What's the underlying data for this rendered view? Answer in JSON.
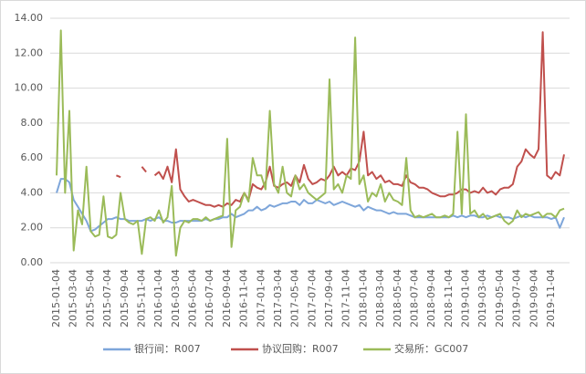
{
  "chart_data": {
    "type": "line",
    "categories": [
      "2015-01-04",
      null,
      null,
      null,
      "2015-03-04",
      null,
      null,
      null,
      "2015-05-04",
      null,
      null,
      null,
      "2015-07-04",
      null,
      null,
      null,
      "2015-09-04",
      null,
      null,
      null,
      "2015-11-04",
      null,
      null,
      null,
      "2016-01-04",
      null,
      null,
      null,
      "2016-03-04",
      null,
      null,
      null,
      "2016-05-04",
      null,
      null,
      null,
      "2016-07-04",
      null,
      null,
      null,
      "2016-09-04",
      null,
      null,
      null,
      "2016-11-04",
      null,
      null,
      null,
      "2017-01-04",
      null,
      null,
      null,
      "2017-03-04",
      null,
      null,
      null,
      "2017-05-04",
      null,
      null,
      null,
      "2017-07-04",
      null,
      null,
      null,
      "2017-09-04",
      null,
      null,
      null,
      "2017-11-04",
      null,
      null,
      null,
      "2018-01-04",
      null,
      null,
      null,
      "2018-03-04",
      null,
      null,
      null,
      "2018-05-04",
      null,
      null,
      null,
      "2018-07-04",
      null,
      null,
      null,
      "2018-09-04",
      null,
      null,
      null,
      "2018-11-04",
      null,
      null,
      null,
      "2019-01-04",
      null,
      null,
      null,
      "2019-03-04",
      null,
      null,
      null,
      "2019-05-04",
      null,
      null,
      null,
      "2019-07-04",
      null,
      null,
      null,
      "2019-09-04",
      null,
      null,
      null,
      "2019-11-04",
      null,
      null,
      null
    ],
    "series": [
      {
        "name": "银行间：R007",
        "color": "#7ea6da",
        "values": [
          4.0,
          4.8,
          4.8,
          4.6,
          3.6,
          3.2,
          2.8,
          2.4,
          1.8,
          1.9,
          2.1,
          2.3,
          2.5,
          2.5,
          2.6,
          2.5,
          2.5,
          2.4,
          2.4,
          2.4,
          2.4,
          2.5,
          2.4,
          2.5,
          2.6,
          2.4,
          2.4,
          2.3,
          2.3,
          2.4,
          2.4,
          2.4,
          2.4,
          2.4,
          2.4,
          2.5,
          2.4,
          2.5,
          2.5,
          2.6,
          2.6,
          2.8,
          2.6,
          2.7,
          2.8,
          3.0,
          3.0,
          3.2,
          3.0,
          3.1,
          3.3,
          3.2,
          3.3,
          3.4,
          3.4,
          3.5,
          3.5,
          3.3,
          3.6,
          3.4,
          3.4,
          3.6,
          3.5,
          3.4,
          3.5,
          3.3,
          3.4,
          3.5,
          3.4,
          3.3,
          3.2,
          3.3,
          3.0,
          3.2,
          3.1,
          3.0,
          3.0,
          2.9,
          2.8,
          2.9,
          2.8,
          2.8,
          2.8,
          2.7,
          2.6,
          2.6,
          2.6,
          2.6,
          2.6,
          2.6,
          2.6,
          2.6,
          2.6,
          2.7,
          2.6,
          2.7,
          2.6,
          2.7,
          2.7,
          2.6,
          2.6,
          2.7,
          2.6,
          2.7,
          2.6,
          2.6,
          2.6,
          2.5,
          2.6,
          2.7,
          2.6,
          2.7,
          2.6,
          2.6,
          2.6,
          2.6,
          2.5,
          2.6,
          2.0,
          2.6
        ]
      },
      {
        "name": "协议回购：R007",
        "color": "#c0504d",
        "values": [
          null,
          null,
          null,
          null,
          null,
          null,
          null,
          null,
          null,
          null,
          null,
          null,
          null,
          null,
          5.0,
          4.9,
          null,
          null,
          null,
          null,
          5.5,
          5.2,
          null,
          5.0,
          5.2,
          4.8,
          5.5,
          4.6,
          6.5,
          4.2,
          3.8,
          3.5,
          3.6,
          3.5,
          3.4,
          3.3,
          3.3,
          3.2,
          3.3,
          3.2,
          3.4,
          3.3,
          3.6,
          3.5,
          4.0,
          3.6,
          4.5,
          4.3,
          4.2,
          4.6,
          5.5,
          4.4,
          4.3,
          4.5,
          4.6,
          4.4,
          5.0,
          4.6,
          5.6,
          4.8,
          4.5,
          4.6,
          4.8,
          4.7,
          5.0,
          5.5,
          5.0,
          5.2,
          5.0,
          5.4,
          5.3,
          5.8,
          7.5,
          5.0,
          5.2,
          4.8,
          5.0,
          4.6,
          4.7,
          4.5,
          4.5,
          4.4,
          5.0,
          4.6,
          4.5,
          4.3,
          4.3,
          4.2,
          4.0,
          3.9,
          3.8,
          3.8,
          3.9,
          3.9,
          4.0,
          4.2,
          4.2,
          4.0,
          4.1,
          4.0,
          4.3,
          4.0,
          4.1,
          3.9,
          4.2,
          4.3,
          4.3,
          4.5,
          5.5,
          5.8,
          6.5,
          6.2,
          6.0,
          6.5,
          13.2,
          5.0,
          4.8,
          5.2,
          5.0,
          6.2
        ]
      },
      {
        "name": "交易所：GC007",
        "color": "#9bbb59",
        "values": [
          5.0,
          13.3,
          4.0,
          8.7,
          0.7,
          3.0,
          2.2,
          5.5,
          1.8,
          1.5,
          1.6,
          3.8,
          1.5,
          1.4,
          1.6,
          4.0,
          2.5,
          2.3,
          2.2,
          2.4,
          0.5,
          2.5,
          2.6,
          2.4,
          3.0,
          2.3,
          2.6,
          4.4,
          0.4,
          2.0,
          2.4,
          2.3,
          2.5,
          2.5,
          2.4,
          2.6,
          2.4,
          2.5,
          2.6,
          2.7,
          7.1,
          0.9,
          3.0,
          3.2,
          4.0,
          3.5,
          6.0,
          5.0,
          5.0,
          4.2,
          8.7,
          4.5,
          4.0,
          5.5,
          4.0,
          3.8,
          5.0,
          4.2,
          4.5,
          4.0,
          3.8,
          3.6,
          3.8,
          4.0,
          10.5,
          4.2,
          4.5,
          4.0,
          5.0,
          4.8,
          12.9,
          4.5,
          5.0,
          3.5,
          4.0,
          3.8,
          4.5,
          3.5,
          4.0,
          3.6,
          3.5,
          3.3,
          6.0,
          3.0,
          2.6,
          2.7,
          2.6,
          2.7,
          2.8,
          2.6,
          2.6,
          2.7,
          2.6,
          2.8,
          7.5,
          2.8,
          8.5,
          2.8,
          3.0,
          2.6,
          2.8,
          2.5,
          2.6,
          2.7,
          2.8,
          2.4,
          2.2,
          2.4,
          3.0,
          2.6,
          2.8,
          2.7,
          2.8,
          2.9,
          2.6,
          2.8,
          2.8,
          2.6,
          3.0,
          3.1
        ]
      }
    ],
    "ylim": [
      0,
      14
    ],
    "yticks": [
      {
        "value": 0,
        "label": "0.00"
      },
      {
        "value": 2,
        "label": "2.00"
      },
      {
        "value": 4,
        "label": "4.00"
      },
      {
        "value": 6,
        "label": "6.00"
      },
      {
        "value": 8,
        "label": "8.00"
      },
      {
        "value": 10,
        "label": "10.00"
      },
      {
        "value": 12,
        "label": "12.00"
      },
      {
        "value": 14,
        "label": "14.00"
      }
    ],
    "grid": true,
    "legend": "bottom"
  }
}
